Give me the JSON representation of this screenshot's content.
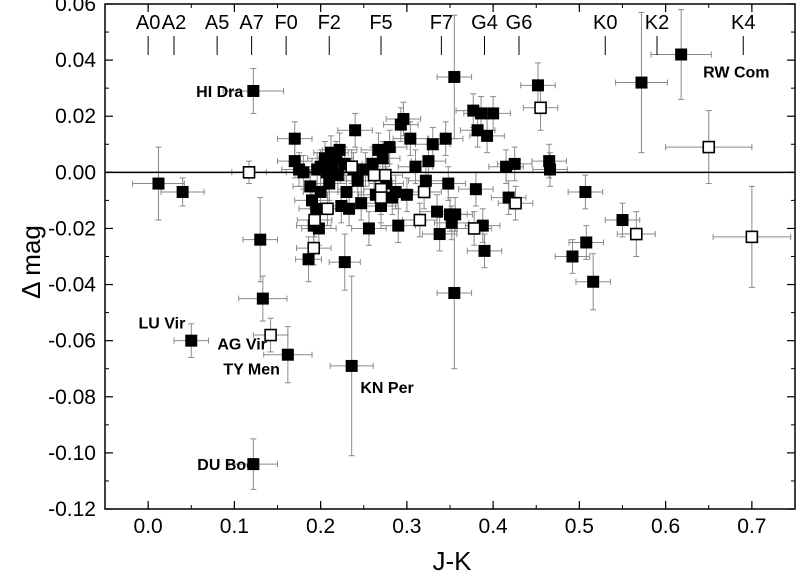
{
  "chart_data": {
    "type": "scatter",
    "title": "",
    "xlabel": "J-K",
    "ylabel": "Δ mag",
    "xlim": [
      -0.05,
      0.75
    ],
    "ylim": [
      -0.12,
      0.06
    ],
    "xticks": [
      0.0,
      0.1,
      0.2,
      0.3,
      0.4,
      0.5,
      0.6,
      0.7
    ],
    "xtick_labels": [
      "0.0",
      "0.1",
      "0.2",
      "0.3",
      "0.4",
      "0.5",
      "0.6",
      "0.7"
    ],
    "yticks": [
      -0.12,
      -0.1,
      -0.08,
      -0.06,
      -0.04,
      -0.02,
      0.0,
      0.02,
      0.04,
      0.06
    ],
    "ytick_labels": [
      "-0.12",
      "-0.10",
      "-0.08",
      "-0.06",
      "-0.04",
      "-0.02",
      "0.00",
      "0.02",
      "0.04",
      "0.06"
    ],
    "grid": false,
    "reference_line_y": 0.0,
    "spectral_types": [
      {
        "label": "A0",
        "x": 0.0
      },
      {
        "label": "A2",
        "x": 0.03
      },
      {
        "label": "A5",
        "x": 0.08
      },
      {
        "label": "A7",
        "x": 0.12
      },
      {
        "label": "F0",
        "x": 0.16
      },
      {
        "label": "F2",
        "x": 0.21
      },
      {
        "label": "F5",
        "x": 0.27
      },
      {
        "label": "F7",
        "x": 0.34
      },
      {
        "label": "G4",
        "x": 0.39
      },
      {
        "label": "G6",
        "x": 0.43
      },
      {
        "label": "K0",
        "x": 0.53
      },
      {
        "label": "K2",
        "x": 0.59
      },
      {
        "label": "K4",
        "x": 0.69
      }
    ],
    "series": [
      {
        "marker": "filled-square",
        "points": [
          {
            "x": 0.012,
            "y": -0.004,
            "xerr": 0.03,
            "yerr": 0.013
          },
          {
            "x": 0.04,
            "y": -0.007,
            "xerr": 0.025,
            "yerr": 0.005
          },
          {
            "x": 0.122,
            "y": 0.029,
            "xerr": 0.035,
            "yerr": 0.008
          },
          {
            "x": 0.13,
            "y": -0.024,
            "xerr": 0.02,
            "yerr": 0.015
          },
          {
            "x": 0.133,
            "y": -0.045,
            "xerr": 0.028,
            "yerr": 0.008
          },
          {
            "x": 0.05,
            "y": -0.06,
            "xerr": 0.02,
            "yerr": 0.006
          },
          {
            "x": 0.162,
            "y": -0.065,
            "xerr": 0.028,
            "yerr": 0.01
          },
          {
            "x": 0.122,
            "y": -0.104,
            "xerr": 0.028,
            "yerr": 0.009
          },
          {
            "x": 0.236,
            "y": -0.069,
            "xerr": 0.025,
            "yerr": 0.032
          },
          {
            "x": 0.228,
            "y": -0.032,
            "xerr": 0.018,
            "yerr": 0.01
          },
          {
            "x": 0.186,
            "y": -0.031,
            "xerr": 0.015,
            "yerr": 0.008
          },
          {
            "x": 0.17,
            "y": 0.012,
            "xerr": 0.02,
            "yerr": 0.006
          },
          {
            "x": 0.17,
            "y": 0.004,
            "xerr": 0.02,
            "yerr": 0.006
          },
          {
            "x": 0.175,
            "y": 0.001,
            "xerr": 0.02,
            "yerr": 0.006
          },
          {
            "x": 0.18,
            "y": 0.0,
            "xerr": 0.02,
            "yerr": 0.006
          },
          {
            "x": 0.188,
            "y": -0.005,
            "xerr": 0.02,
            "yerr": 0.006
          },
          {
            "x": 0.19,
            "y": -0.01,
            "xerr": 0.02,
            "yerr": 0.006
          },
          {
            "x": 0.195,
            "y": -0.013,
            "xerr": 0.02,
            "yerr": 0.006
          },
          {
            "x": 0.192,
            "y": -0.019,
            "xerr": 0.02,
            "yerr": 0.006
          },
          {
            "x": 0.196,
            "y": 0.001,
            "xerr": 0.02,
            "yerr": 0.006
          },
          {
            "x": 0.198,
            "y": -0.02,
            "xerr": 0.02,
            "yerr": 0.006
          },
          {
            "x": 0.2,
            "y": 0.002,
            "xerr": 0.02,
            "yerr": 0.006
          },
          {
            "x": 0.2,
            "y": -0.007,
            "xerr": 0.02,
            "yerr": 0.006
          },
          {
            "x": 0.205,
            "y": 0.005,
            "xerr": 0.02,
            "yerr": 0.006
          },
          {
            "x": 0.207,
            "y": 0.0,
            "xerr": 0.02,
            "yerr": 0.006
          },
          {
            "x": 0.21,
            "y": -0.004,
            "xerr": 0.02,
            "yerr": 0.006
          },
          {
            "x": 0.212,
            "y": 0.007,
            "xerr": 0.02,
            "yerr": 0.006
          },
          {
            "x": 0.214,
            "y": 0.002,
            "xerr": 0.02,
            "yerr": 0.006
          },
          {
            "x": 0.218,
            "y": 0.005,
            "xerr": 0.02,
            "yerr": 0.006
          },
          {
            "x": 0.22,
            "y": -0.001,
            "xerr": 0.02,
            "yerr": 0.006
          },
          {
            "x": 0.222,
            "y": 0.008,
            "xerr": 0.02,
            "yerr": 0.006
          },
          {
            "x": 0.224,
            "y": -0.012,
            "xerr": 0.02,
            "yerr": 0.006
          },
          {
            "x": 0.228,
            "y": 0.003,
            "xerr": 0.02,
            "yerr": 0.006
          },
          {
            "x": 0.23,
            "y": -0.007,
            "xerr": 0.02,
            "yerr": 0.006
          },
          {
            "x": 0.233,
            "y": -0.013,
            "xerr": 0.02,
            "yerr": 0.006
          },
          {
            "x": 0.238,
            "y": 0.001,
            "xerr": 0.02,
            "yerr": 0.006
          },
          {
            "x": 0.24,
            "y": 0.015,
            "xerr": 0.02,
            "yerr": 0.006
          },
          {
            "x": 0.243,
            "y": -0.003,
            "xerr": 0.02,
            "yerr": 0.006
          },
          {
            "x": 0.247,
            "y": -0.011,
            "xerr": 0.02,
            "yerr": 0.006
          },
          {
            "x": 0.252,
            "y": 0.001,
            "xerr": 0.02,
            "yerr": 0.006
          },
          {
            "x": 0.256,
            "y": -0.02,
            "xerr": 0.02,
            "yerr": 0.006
          },
          {
            "x": 0.26,
            "y": 0.003,
            "xerr": 0.02,
            "yerr": 0.006
          },
          {
            "x": 0.264,
            "y": -0.008,
            "xerr": 0.02,
            "yerr": 0.006
          },
          {
            "x": 0.267,
            "y": 0.008,
            "xerr": 0.02,
            "yerr": 0.006
          },
          {
            "x": 0.27,
            "y": -0.012,
            "xerr": 0.02,
            "yerr": 0.006
          },
          {
            "x": 0.272,
            "y": 0.005,
            "xerr": 0.02,
            "yerr": 0.006
          },
          {
            "x": 0.276,
            "y": -0.004,
            "xerr": 0.02,
            "yerr": 0.006
          },
          {
            "x": 0.28,
            "y": 0.009,
            "xerr": 0.02,
            "yerr": 0.006
          },
          {
            "x": 0.283,
            "y": -0.009,
            "xerr": 0.02,
            "yerr": 0.006
          },
          {
            "x": 0.287,
            "y": -0.007,
            "xerr": 0.02,
            "yerr": 0.006
          },
          {
            "x": 0.29,
            "y": -0.019,
            "xerr": 0.02,
            "yerr": 0.006
          },
          {
            "x": 0.293,
            "y": 0.017,
            "xerr": 0.02,
            "yerr": 0.006
          },
          {
            "x": 0.296,
            "y": 0.019,
            "xerr": 0.02,
            "yerr": 0.006
          },
          {
            "x": 0.3,
            "y": -0.008,
            "xerr": 0.02,
            "yerr": 0.006
          },
          {
            "x": 0.304,
            "y": 0.012,
            "xerr": 0.02,
            "yerr": 0.006
          },
          {
            "x": 0.31,
            "y": 0.002,
            "xerr": 0.02,
            "yerr": 0.006
          },
          {
            "x": 0.322,
            "y": -0.003,
            "xerr": 0.02,
            "yerr": 0.006
          },
          {
            "x": 0.325,
            "y": 0.004,
            "xerr": 0.02,
            "yerr": 0.006
          },
          {
            "x": 0.33,
            "y": 0.01,
            "xerr": 0.02,
            "yerr": 0.006
          },
          {
            "x": 0.335,
            "y": -0.014,
            "xerr": 0.02,
            "yerr": 0.006
          },
          {
            "x": 0.338,
            "y": -0.022,
            "xerr": 0.02,
            "yerr": 0.006
          },
          {
            "x": 0.345,
            "y": 0.012,
            "xerr": 0.02,
            "yerr": 0.006
          },
          {
            "x": 0.348,
            "y": -0.004,
            "xerr": 0.02,
            "yerr": 0.006
          },
          {
            "x": 0.35,
            "y": -0.015,
            "xerr": 0.02,
            "yerr": 0.006
          },
          {
            "x": 0.352,
            "y": -0.018,
            "xerr": 0.02,
            "yerr": 0.006
          },
          {
            "x": 0.355,
            "y": 0.034,
            "xerr": 0.02,
            "yerr": 0.022
          },
          {
            "x": 0.355,
            "y": -0.043,
            "xerr": 0.02,
            "yerr": 0.027
          },
          {
            "x": 0.356,
            "y": -0.015,
            "xerr": 0.02,
            "yerr": 0.006
          },
          {
            "x": 0.377,
            "y": 0.022,
            "xerr": 0.02,
            "yerr": 0.006
          },
          {
            "x": 0.38,
            "y": -0.006,
            "xerr": 0.02,
            "yerr": 0.006
          },
          {
            "x": 0.382,
            "y": 0.015,
            "xerr": 0.02,
            "yerr": 0.006
          },
          {
            "x": 0.386,
            "y": 0.021,
            "xerr": 0.02,
            "yerr": 0.006
          },
          {
            "x": 0.388,
            "y": -0.019,
            "xerr": 0.02,
            "yerr": 0.006
          },
          {
            "x": 0.39,
            "y": -0.028,
            "xerr": 0.02,
            "yerr": 0.006
          },
          {
            "x": 0.393,
            "y": 0.013,
            "xerr": 0.02,
            "yerr": 0.006
          },
          {
            "x": 0.4,
            "y": 0.021,
            "xerr": 0.02,
            "yerr": 0.006
          },
          {
            "x": 0.415,
            "y": 0.002,
            "xerr": 0.02,
            "yerr": 0.006
          },
          {
            "x": 0.418,
            "y": -0.009,
            "xerr": 0.02,
            "yerr": 0.006
          },
          {
            "x": 0.425,
            "y": 0.003,
            "xerr": 0.02,
            "yerr": 0.006
          },
          {
            "x": 0.452,
            "y": 0.031,
            "xerr": 0.02,
            "yerr": 0.008
          },
          {
            "x": 0.465,
            "y": 0.004,
            "xerr": 0.02,
            "yerr": 0.006
          },
          {
            "x": 0.466,
            "y": 0.001,
            "xerr": 0.02,
            "yerr": 0.006
          },
          {
            "x": 0.492,
            "y": -0.03,
            "xerr": 0.02,
            "yerr": 0.006
          },
          {
            "x": 0.507,
            "y": -0.007,
            "xerr": 0.02,
            "yerr": 0.006
          },
          {
            "x": 0.508,
            "y": -0.025,
            "xerr": 0.02,
            "yerr": 0.006
          },
          {
            "x": 0.516,
            "y": -0.039,
            "xerr": 0.02,
            "yerr": 0.01
          },
          {
            "x": 0.55,
            "y": -0.017,
            "xerr": 0.02,
            "yerr": 0.006
          },
          {
            "x": 0.572,
            "y": 0.032,
            "xerr": 0.03,
            "yerr": 0.025
          },
          {
            "x": 0.618,
            "y": 0.042,
            "xerr": 0.035,
            "yerr": 0.016
          }
        ]
      },
      {
        "marker": "open-square",
        "points": [
          {
            "x": 0.117,
            "y": 0.0,
            "xerr": 0.02,
            "yerr": 0.004
          },
          {
            "x": 0.192,
            "y": -0.027,
            "xerr": 0.02,
            "yerr": 0.006
          },
          {
            "x": 0.193,
            "y": -0.017,
            "xerr": 0.02,
            "yerr": 0.006
          },
          {
            "x": 0.208,
            "y": -0.013,
            "xerr": 0.02,
            "yerr": 0.006
          },
          {
            "x": 0.236,
            "y": 0.002,
            "xerr": 0.02,
            "yerr": 0.006
          },
          {
            "x": 0.262,
            "y": -0.001,
            "xerr": 0.02,
            "yerr": 0.006
          },
          {
            "x": 0.27,
            "y": -0.006,
            "xerr": 0.02,
            "yerr": 0.006
          },
          {
            "x": 0.27,
            "y": -0.009,
            "xerr": 0.02,
            "yerr": 0.006
          },
          {
            "x": 0.275,
            "y": -0.001,
            "xerr": 0.02,
            "yerr": 0.006
          },
          {
            "x": 0.315,
            "y": -0.017,
            "xerr": 0.02,
            "yerr": 0.006
          },
          {
            "x": 0.32,
            "y": -0.007,
            "xerr": 0.02,
            "yerr": 0.006
          },
          {
            "x": 0.142,
            "y": -0.058,
            "xerr": 0.02,
            "yerr": 0.006
          },
          {
            "x": 0.378,
            "y": -0.02,
            "xerr": 0.02,
            "yerr": 0.006
          },
          {
            "x": 0.426,
            "y": -0.011,
            "xerr": 0.02,
            "yerr": 0.006
          },
          {
            "x": 0.455,
            "y": 0.023,
            "xerr": 0.02,
            "yerr": 0.008
          },
          {
            "x": 0.566,
            "y": -0.022,
            "xerr": 0.022,
            "yerr": 0.008
          },
          {
            "x": 0.65,
            "y": 0.009,
            "xerr": 0.05,
            "yerr": 0.013
          },
          {
            "x": 0.7,
            "y": -0.023,
            "xerr": 0.045,
            "yerr": 0.018
          }
        ]
      }
    ],
    "annotations": [
      {
        "text": "HI Dra",
        "x": 0.083,
        "y": 0.029
      },
      {
        "text": "RW Com",
        "x": 0.682,
        "y": 0.036
      },
      {
        "text": "LU Vir",
        "x": 0.016,
        "y": -0.0535
      },
      {
        "text": "AG Vir",
        "x": 0.109,
        "y": -0.061
      },
      {
        "text": "TY Men",
        "x": 0.12,
        "y": -0.07
      },
      {
        "text": "KN Per",
        "x": 0.277,
        "y": -0.0765
      },
      {
        "text": "DU Boo",
        "x": 0.091,
        "y": -0.104
      }
    ]
  }
}
